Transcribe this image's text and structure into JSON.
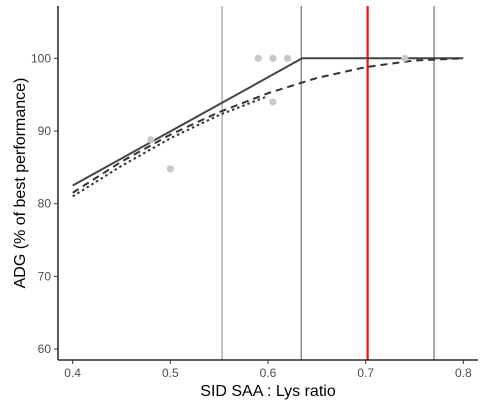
{
  "chart_data": {
    "type": "line",
    "title": "",
    "xlabel": "SID SAA : Lys ratio",
    "ylabel": "ADG (% of best performance)",
    "xlim": [
      0.385,
      0.815
    ],
    "ylim": [
      58.5,
      107.2
    ],
    "x_ticks": [
      0.4,
      0.5,
      0.6,
      0.7,
      0.8
    ],
    "y_ticks": [
      60,
      70,
      80,
      90,
      100
    ],
    "grid": false,
    "legend": "none",
    "series": [
      {
        "style": "solid",
        "color": "#444444",
        "x": [
          0.4,
          0.635,
          0.8
        ],
        "y": [
          82.5,
          100,
          100
        ]
      },
      {
        "style": "dashed",
        "color": "#333333",
        "x": [
          0.4,
          0.45,
          0.5,
          0.55,
          0.6,
          0.65,
          0.7,
          0.75,
          0.8
        ],
        "y": [
          81.5,
          85.8,
          89.5,
          92.6,
          95.2,
          97.3,
          98.8,
          99.7,
          100
        ]
      },
      {
        "style": "dotted",
        "color": "#333333",
        "x": [
          0.4,
          0.45,
          0.5,
          0.55,
          0.6
        ],
        "y": [
          81.0,
          85.2,
          89.0,
          92.2,
          94.8
        ]
      }
    ],
    "points": {
      "color": "#c8c8c8",
      "x": [
        0.48,
        0.5,
        0.59,
        0.605,
        0.62,
        0.605,
        0.74
      ],
      "y": [
        88.8,
        84.8,
        100,
        100,
        100,
        94.0,
        100
      ]
    },
    "vlines": [
      {
        "x": 0.553,
        "color": "#888888"
      },
      {
        "x": 0.634,
        "color": "#555555"
      },
      {
        "x": 0.702,
        "color": "#ee1111"
      },
      {
        "x": 0.77,
        "color": "#555555"
      }
    ]
  }
}
